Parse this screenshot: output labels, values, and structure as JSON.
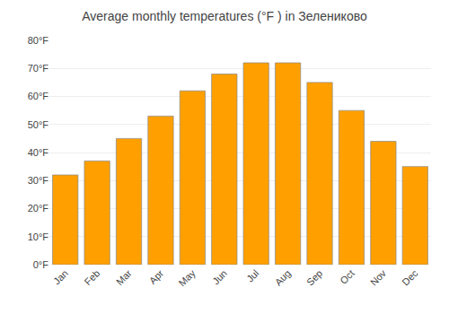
{
  "chart_data": {
    "type": "bar",
    "title": "Average monthly temperatures (°F ) in Зелениково",
    "categories": [
      "Jan",
      "Feb",
      "Mar",
      "Apr",
      "May",
      "Jun",
      "Jul",
      "Aug",
      "Sep",
      "Oct",
      "Nov",
      "Dec"
    ],
    "values": [
      32,
      37,
      45,
      53,
      62,
      68,
      72,
      72,
      65,
      55,
      44,
      35
    ],
    "color": "#FFA000",
    "ylim": [
      0,
      80
    ],
    "yticks": [
      {
        "value": 0,
        "label": "0°F"
      },
      {
        "value": 10,
        "label": "10°F"
      },
      {
        "value": 20,
        "label": "20°F"
      },
      {
        "value": 30,
        "label": "30°F"
      },
      {
        "value": 40,
        "label": "40°F"
      },
      {
        "value": 50,
        "label": "50°F"
      },
      {
        "value": 60,
        "label": "60°F"
      },
      {
        "value": 70,
        "label": "70°F"
      },
      {
        "value": 80,
        "label": "80°F"
      }
    ],
    "grid": true
  }
}
